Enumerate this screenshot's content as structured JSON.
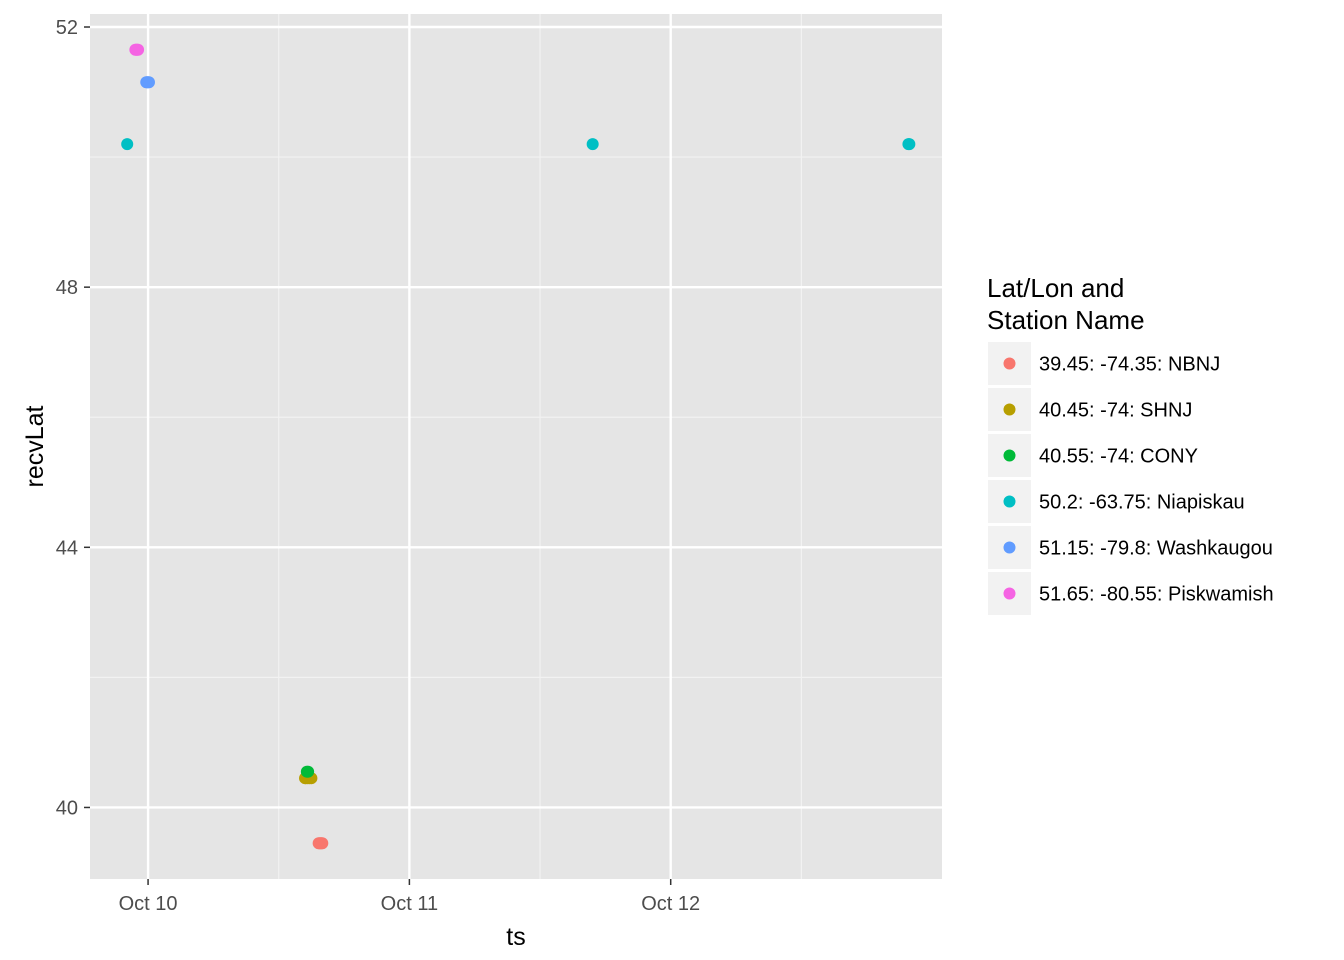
{
  "chart_data": {
    "type": "scatter",
    "title": "",
    "xlabel": "ts",
    "ylabel": "recvLat",
    "x_type": "datetime",
    "xlim": [
      "2016-10-09T18:40",
      "2016-10-13T00:55"
    ],
    "ylim": [
      38.9,
      52.2
    ],
    "x_ticks": [
      {
        "value": "2016-10-10T00:00",
        "label": "Oct 10"
      },
      {
        "value": "2016-10-11T00:00",
        "label": "Oct 11"
      },
      {
        "value": "2016-10-12T00:00",
        "label": "Oct 12"
      }
    ],
    "y_ticks": [
      40,
      44,
      48,
      52
    ],
    "y_ticks_labels": [
      "40",
      "44",
      "48",
      "52"
    ],
    "grid": true,
    "background": "#e5e5e5",
    "legend": {
      "title_lines": [
        "Lat/Lon and",
        "Station Name"
      ],
      "position": "right"
    },
    "series": [
      {
        "name": "39.45: -74.35: NBNJ",
        "color": "#F8766D",
        "points": [
          {
            "x": "2016-10-10T15:40",
            "y": 39.45
          },
          {
            "x": "2016-10-10T15:45",
            "y": 39.45
          },
          {
            "x": "2016-10-10T15:50",
            "y": 39.45
          },
          {
            "x": "2016-10-10T15:55",
            "y": 39.45
          },
          {
            "x": "2016-10-10T16:00",
            "y": 39.45
          }
        ]
      },
      {
        "name": "40.45: -74: SHNJ",
        "color": "#B79F00",
        "points": [
          {
            "x": "2016-10-10T14:25",
            "y": 40.45
          },
          {
            "x": "2016-10-10T14:30",
            "y": 40.45
          },
          {
            "x": "2016-10-10T14:40",
            "y": 40.45
          },
          {
            "x": "2016-10-10T14:50",
            "y": 40.45
          },
          {
            "x": "2016-10-10T15:00",
            "y": 40.45
          }
        ]
      },
      {
        "name": "40.55: -74: CONY",
        "color": "#00BA38",
        "points": [
          {
            "x": "2016-10-10T14:35",
            "y": 40.55
          },
          {
            "x": "2016-10-10T14:42",
            "y": 40.55
          }
        ]
      },
      {
        "name": "50.2: -63.75: Niapiskau",
        "color": "#00BFC4",
        "points": [
          {
            "x": "2016-10-09T22:05",
            "y": 50.2
          },
          {
            "x": "2016-10-11T16:50",
            "y": 50.2
          },
          {
            "x": "2016-10-12T21:50",
            "y": 50.2
          },
          {
            "x": "2016-10-12T21:55",
            "y": 50.2
          }
        ]
      },
      {
        "name": "51.15: -79.8: Washkaugou",
        "color": "#619CFF",
        "points": [
          {
            "x": "2016-10-09T23:50",
            "y": 51.15
          },
          {
            "x": "2016-10-09T23:55",
            "y": 51.15
          },
          {
            "x": "2016-10-10T00:00",
            "y": 51.15
          },
          {
            "x": "2016-10-10T00:05",
            "y": 51.15
          }
        ]
      },
      {
        "name": "51.65: -80.55: Piskwamish",
        "color": "#F564E3",
        "points": [
          {
            "x": "2016-10-09T22:50",
            "y": 51.65
          },
          {
            "x": "2016-10-09T22:55",
            "y": 51.65
          },
          {
            "x": "2016-10-09T23:00",
            "y": 51.65
          },
          {
            "x": "2016-10-09T23:05",
            "y": 51.65
          }
        ]
      }
    ]
  }
}
